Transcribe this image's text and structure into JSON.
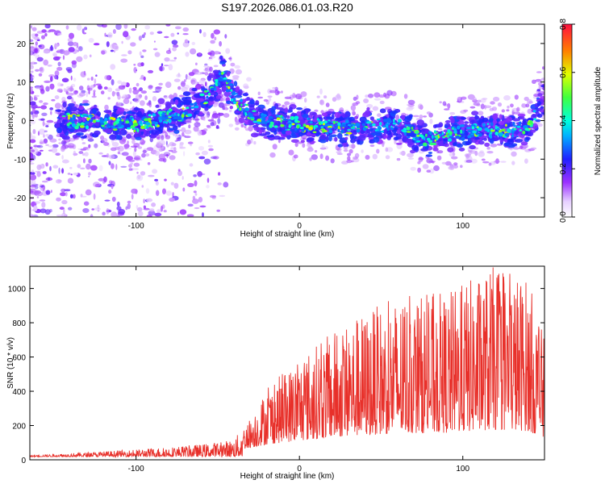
{
  "title": "S197.2026.086.01.03.R20",
  "chart_data": [
    {
      "type": "heatmap",
      "xlabel": "Height of straight line (km)",
      "ylabel": "Frequency (Hz)",
      "xlim": [
        -165,
        150
      ],
      "ylim": [
        -25,
        25
      ],
      "xticks": [
        -100,
        0,
        100
      ],
      "yticks": [
        -20,
        -10,
        0,
        10,
        20
      ],
      "colorbar": {
        "label": "Normalized spectral amplitude",
        "range": [
          0,
          0.8
        ],
        "ticks": [
          "0.0",
          "0.2",
          "0.4",
          "0.6",
          "0.8"
        ]
      },
      "ridge": [
        {
          "x": -140,
          "y": 0
        },
        {
          "x": -100,
          "y": -1
        },
        {
          "x": -70,
          "y": 2
        },
        {
          "x": -55,
          "y": 7
        },
        {
          "x": -47,
          "y": 12
        },
        {
          "x": -40,
          "y": 6
        },
        {
          "x": -25,
          "y": 0
        },
        {
          "x": 0,
          "y": -1
        },
        {
          "x": 30,
          "y": -2
        },
        {
          "x": 60,
          "y": -1
        },
        {
          "x": 75,
          "y": -5
        },
        {
          "x": 100,
          "y": -3
        },
        {
          "x": 140,
          "y": -2
        },
        {
          "x": 148,
          "y": 5
        }
      ]
    },
    {
      "type": "line",
      "xlabel": "Height of straight line (km)",
      "ylabel": "SNR (10 * v/v)",
      "xlim": [
        -165,
        150
      ],
      "ylim": [
        0,
        1130
      ],
      "xticks": [
        -100,
        0,
        100
      ],
      "yticks": [
        0,
        200,
        400,
        600,
        800,
        1000
      ],
      "color": "#e8302a",
      "envelope": [
        {
          "x": -165,
          "y": 25
        },
        {
          "x": -100,
          "y": 60
        },
        {
          "x": -60,
          "y": 90
        },
        {
          "x": -40,
          "y": 120
        },
        {
          "x": -30,
          "y": 250
        },
        {
          "x": -20,
          "y": 420
        },
        {
          "x": 0,
          "y": 600
        },
        {
          "x": 30,
          "y": 820
        },
        {
          "x": 60,
          "y": 950
        },
        {
          "x": 90,
          "y": 980
        },
        {
          "x": 118,
          "y": 1130
        },
        {
          "x": 140,
          "y": 1070
        },
        {
          "x": 150,
          "y": 700
        }
      ]
    }
  ]
}
